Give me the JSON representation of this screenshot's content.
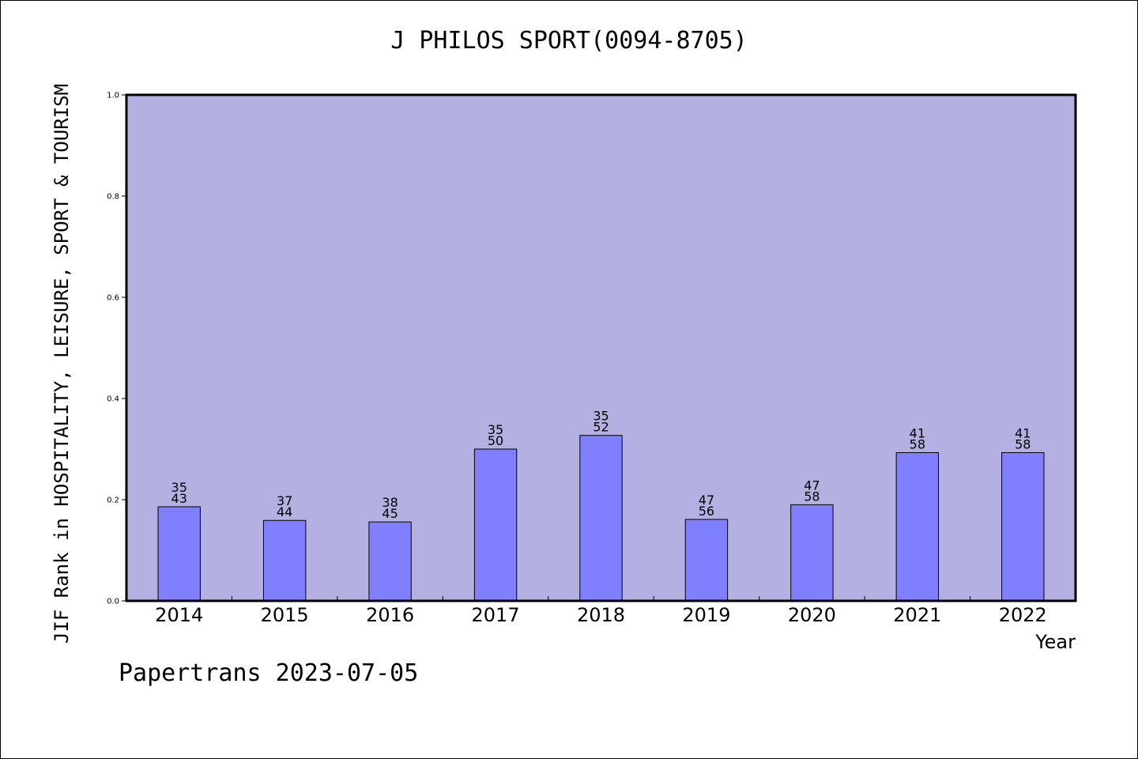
{
  "chart_data": {
    "type": "bar",
    "title": "J PHILOS SPORT(0094-8705)",
    "xlabel": "Year",
    "ylabel": "JIF Rank in HOSPITALITY, LEISURE, SPORT & TOURISM",
    "ylim": [
      0.0,
      1.0
    ],
    "yticks": [
      "0.0",
      "0.2",
      "0.4",
      "0.6",
      "0.8",
      "1.0"
    ],
    "categories": [
      "2014",
      "2015",
      "2016",
      "2017",
      "2018",
      "2019",
      "2020",
      "2021",
      "2022"
    ],
    "values": [
      0.186,
      0.159,
      0.156,
      0.3,
      0.327,
      0.161,
      0.19,
      0.293,
      0.293
    ],
    "labels": [
      {
        "top": "35",
        "bottom": "43"
      },
      {
        "top": "37",
        "bottom": "44"
      },
      {
        "top": "38",
        "bottom": "45"
      },
      {
        "top": "35",
        "bottom": "50"
      },
      {
        "top": "35",
        "bottom": "52"
      },
      {
        "top": "47",
        "bottom": "56"
      },
      {
        "top": "47",
        "bottom": "58"
      },
      {
        "top": "41",
        "bottom": "58"
      },
      {
        "top": "41",
        "bottom": "58"
      }
    ],
    "colors": {
      "plot_bg": "#b5b0e2",
      "bar": "#8080ff",
      "axis": "#000000"
    }
  },
  "footer": "Papertrans 2023-07-05"
}
